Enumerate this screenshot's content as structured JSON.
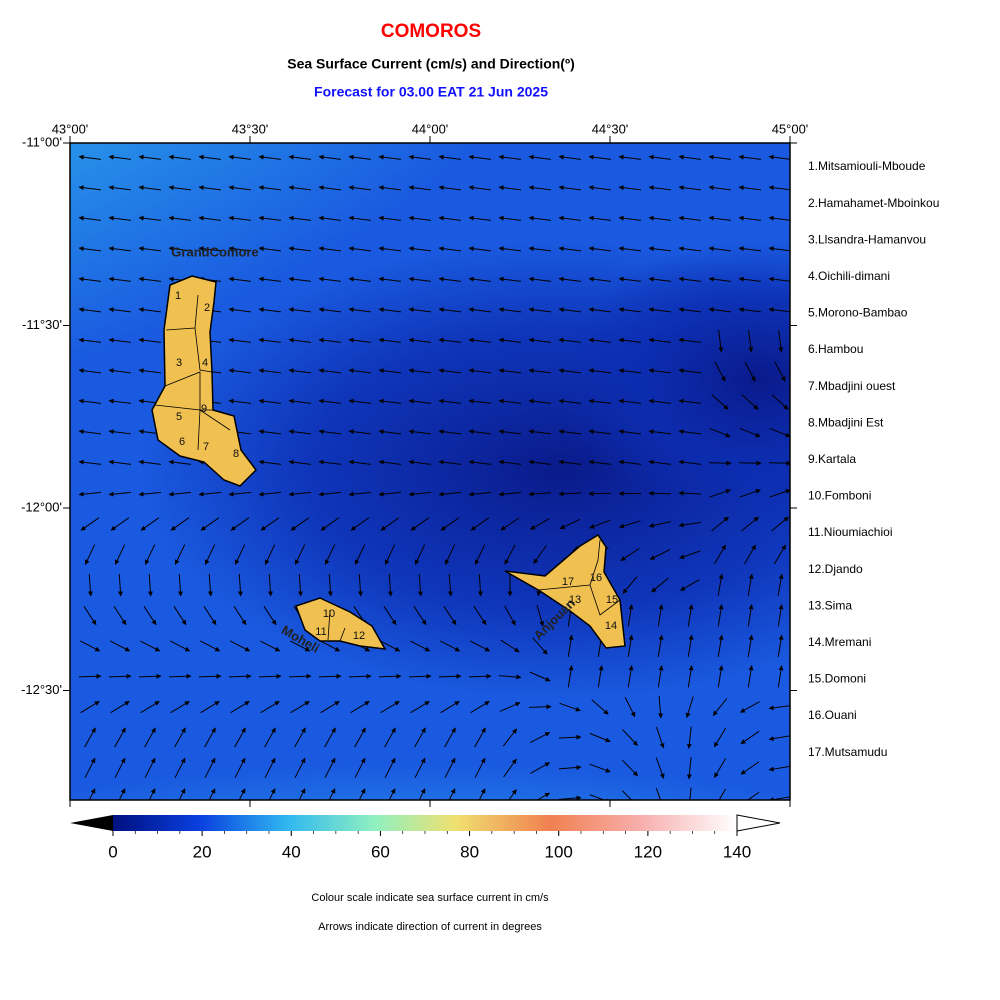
{
  "header": {
    "title": "COMOROS",
    "subtitle": "Sea Surface Current (cm/s) and Direction(º)",
    "forecast": "Forecast for  03.00 EAT 21 Jun 2025"
  },
  "map": {
    "x_labels": [
      "43°00'",
      "43°30'",
      "44°00'",
      "44°30'",
      "45°00'"
    ],
    "y_labels": [
      "-11°00'",
      "-11°30'",
      "-12°00'",
      "-12°30'"
    ],
    "islands": [
      "GrandComore",
      "Moheli",
      "Anjouan"
    ],
    "region_numbers": [
      "1",
      "2",
      "3",
      "4",
      "5",
      "6",
      "7",
      "8",
      "9",
      "10",
      "11",
      "12",
      "13",
      "14",
      "15",
      "16",
      "17"
    ]
  },
  "regions": [
    "1.Mitsamiouli-Mboude",
    "2.Hamahamet-Mboinkou",
    "3.Llsandra-Hamanvou",
    "4.Oichili-dimani",
    "5.Morono-Bambao",
    "6.Hambou",
    "7.Mbadjini ouest",
    "8.Mbadjini Est",
    "9.Kartala",
    "10.Fomboni",
    "11.Nioumiachioi",
    "12.Djando",
    "13.Sima",
    "14.Mremani",
    "15.Domoni",
    "16.Ouani",
    "17.Mutsamudu"
  ],
  "colorbar": {
    "ticks": [
      0,
      20,
      40,
      60,
      80,
      100,
      120,
      140
    ]
  },
  "notes": [
    "Colour scale indicate sea surface current in cm/s",
    "Arrows indicate direction of current in degrees"
  ]
}
